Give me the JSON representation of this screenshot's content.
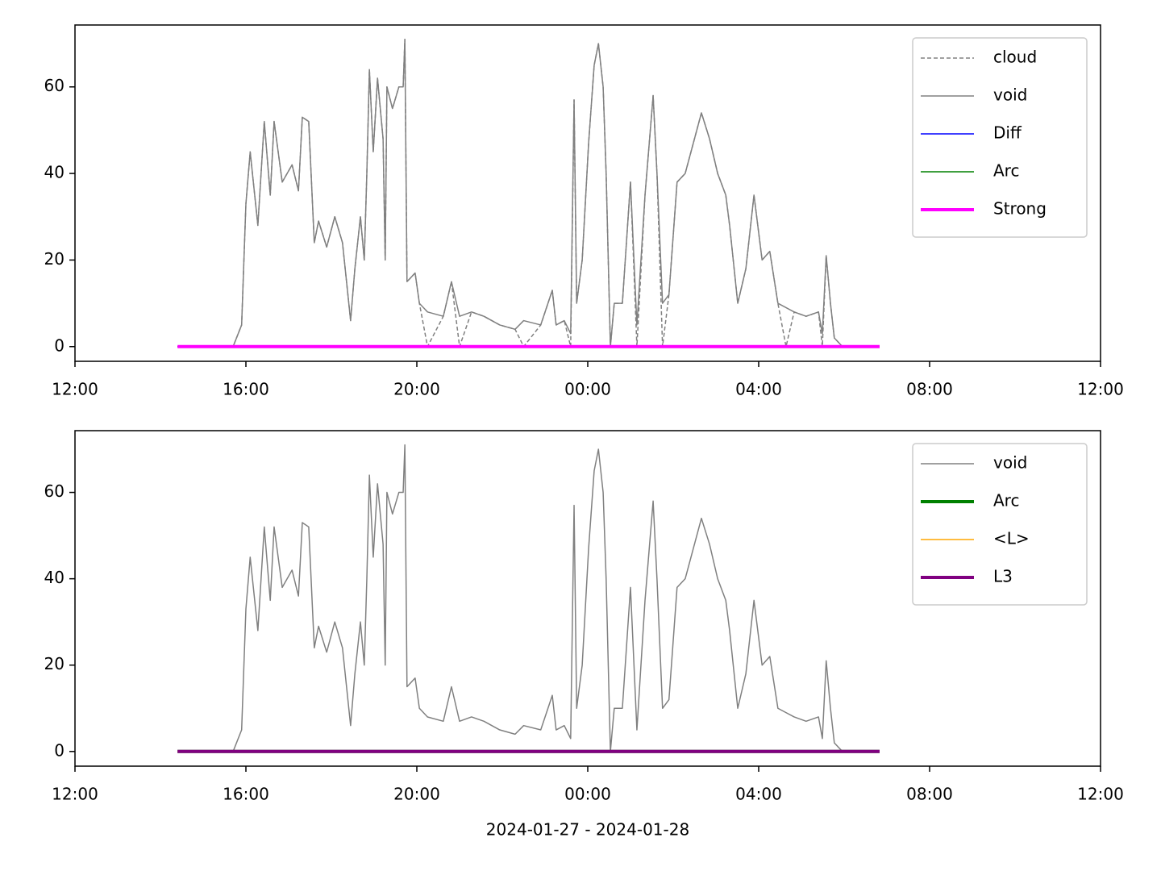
{
  "chart_data": [
    {
      "type": "line",
      "legend": "upper right",
      "ylim": [
        -3.4,
        74.3
      ],
      "yticks": [
        0,
        20,
        40,
        60
      ],
      "xlim": [
        0,
        24
      ],
      "xticks": [
        {
          "value": 0,
          "label": "12:00"
        },
        {
          "value": 4,
          "label": "16:00"
        },
        {
          "value": 8,
          "label": "20:00"
        },
        {
          "value": 12,
          "label": "00:00"
        },
        {
          "value": 16,
          "label": "04:00"
        },
        {
          "value": 20,
          "label": "08:00"
        },
        {
          "value": 24,
          "label": "12:00"
        }
      ],
      "x": [
        2.4,
        3.7,
        3.9,
        4.0,
        4.1,
        4.28,
        4.43,
        4.57,
        4.66,
        4.85,
        5.08,
        5.23,
        5.32,
        5.47,
        5.6,
        5.7,
        5.89,
        6.08,
        6.26,
        6.45,
        6.55,
        6.68,
        6.77,
        6.83,
        6.89,
        6.98,
        7.08,
        7.21,
        7.26,
        7.3,
        7.43,
        7.58,
        7.68,
        7.72,
        7.77,
        7.96,
        8.06,
        8.25,
        8.62,
        8.81,
        9.0,
        9.28,
        9.57,
        9.94,
        10.3,
        10.5,
        10.9,
        11.17,
        11.26,
        11.45,
        11.6,
        11.68,
        11.74,
        11.87,
        12.02,
        12.15,
        12.25,
        12.36,
        12.43,
        12.53,
        12.62,
        12.81,
        13.0,
        13.15,
        13.34,
        13.53,
        13.62,
        13.75,
        13.9,
        14.09,
        14.28,
        14.47,
        14.66,
        14.85,
        15.04,
        15.23,
        15.32,
        15.51,
        15.7,
        15.89,
        16.08,
        16.26,
        16.45,
        16.64,
        16.83,
        17.11,
        17.4,
        17.49,
        17.58,
        17.68,
        17.77,
        17.96,
        18.83
      ],
      "series": [
        {
          "name": "cloud",
          "color": "#808080",
          "width": 1.5,
          "dash": true,
          "values": [
            0,
            0,
            5,
            33,
            45,
            28,
            52,
            35,
            52,
            38,
            42,
            36,
            53,
            52,
            24,
            29,
            23,
            30,
            24,
            6,
            18,
            30,
            20,
            40,
            64,
            45,
            62,
            48,
            20,
            60,
            55,
            60,
            60,
            71,
            15,
            17,
            10,
            0,
            7,
            15,
            0,
            8,
            7,
            5,
            4,
            0,
            5,
            13,
            5,
            6,
            0,
            57,
            10,
            20,
            47,
            65,
            70,
            60,
            40,
            0,
            10,
            10,
            38,
            0,
            35,
            58,
            40,
            0,
            12,
            38,
            40,
            47,
            54,
            48,
            40,
            35,
            28,
            10,
            18,
            35,
            20,
            22,
            10,
            0,
            8,
            7,
            8,
            0,
            21,
            10,
            2,
            0,
            0
          ]
        },
        {
          "name": "void",
          "color": "#808080",
          "width": 1.5,
          "values": [
            0,
            0,
            5,
            33,
            45,
            28,
            52,
            35,
            52,
            38,
            42,
            36,
            53,
            52,
            24,
            29,
            23,
            30,
            24,
            6,
            18,
            30,
            20,
            40,
            64,
            45,
            62,
            48,
            20,
            60,
            55,
            60,
            60,
            71,
            15,
            17,
            10,
            8,
            7,
            15,
            7,
            8,
            7,
            5,
            4,
            6,
            5,
            13,
            5,
            6,
            3,
            57,
            10,
            20,
            47,
            65,
            70,
            60,
            40,
            0,
            10,
            10,
            38,
            5,
            35,
            58,
            40,
            10,
            12,
            38,
            40,
            47,
            54,
            48,
            40,
            35,
            28,
            10,
            18,
            35,
            20,
            22,
            10,
            9,
            8,
            7,
            8,
            3,
            21,
            10,
            2,
            0,
            0
          ]
        },
        {
          "name": "Diff",
          "color": "#0000ff",
          "width": 1.5,
          "x": [
            2.4,
            18.83
          ],
          "values": [
            0,
            0
          ]
        },
        {
          "name": "Arc",
          "color": "#008000",
          "width": 1.5,
          "x": [
            2.4,
            18.83
          ],
          "values": [
            0,
            0
          ]
        },
        {
          "name": "Strong",
          "color": "#ff00ff",
          "width": 4,
          "x": [
            2.4,
            18.83
          ],
          "values": [
            0,
            0
          ]
        }
      ]
    },
    {
      "type": "line",
      "legend": "upper right",
      "ylim": [
        -3.4,
        74.3
      ],
      "yticks": [
        0,
        20,
        40,
        60
      ],
      "xlim": [
        0,
        24
      ],
      "xlabel": "2024-01-27 - 2024-01-28",
      "xticks": [
        {
          "value": 0,
          "label": "12:00"
        },
        {
          "value": 4,
          "label": "16:00"
        },
        {
          "value": 8,
          "label": "20:00"
        },
        {
          "value": 12,
          "label": "00:00"
        },
        {
          "value": 16,
          "label": "04:00"
        },
        {
          "value": 20,
          "label": "08:00"
        },
        {
          "value": 24,
          "label": "12:00"
        }
      ],
      "x": [
        2.4,
        3.7,
        3.9,
        4.0,
        4.1,
        4.28,
        4.43,
        4.57,
        4.66,
        4.85,
        5.08,
        5.23,
        5.32,
        5.47,
        5.6,
        5.7,
        5.89,
        6.08,
        6.26,
        6.45,
        6.55,
        6.68,
        6.77,
        6.83,
        6.89,
        6.98,
        7.08,
        7.21,
        7.26,
        7.3,
        7.43,
        7.58,
        7.68,
        7.72,
        7.77,
        7.96,
        8.06,
        8.25,
        8.62,
        8.81,
        9.0,
        9.28,
        9.57,
        9.94,
        10.3,
        10.5,
        10.9,
        11.17,
        11.26,
        11.45,
        11.6,
        11.68,
        11.74,
        11.87,
        12.02,
        12.15,
        12.25,
        12.36,
        12.43,
        12.53,
        12.62,
        12.81,
        13.0,
        13.15,
        13.34,
        13.53,
        13.62,
        13.75,
        13.9,
        14.09,
        14.28,
        14.47,
        14.66,
        14.85,
        15.04,
        15.23,
        15.32,
        15.51,
        15.7,
        15.89,
        16.08,
        16.26,
        16.45,
        16.64,
        16.83,
        17.11,
        17.4,
        17.49,
        17.58,
        17.68,
        17.77,
        17.96,
        18.83
      ],
      "series": [
        {
          "name": "void",
          "color": "#808080",
          "width": 1.5,
          "values": [
            0,
            0,
            5,
            33,
            45,
            28,
            52,
            35,
            52,
            38,
            42,
            36,
            53,
            52,
            24,
            29,
            23,
            30,
            24,
            6,
            18,
            30,
            20,
            40,
            64,
            45,
            62,
            48,
            20,
            60,
            55,
            60,
            60,
            71,
            15,
            17,
            10,
            8,
            7,
            15,
            7,
            8,
            7,
            5,
            4,
            6,
            5,
            13,
            5,
            6,
            3,
            57,
            10,
            20,
            47,
            65,
            70,
            60,
            40,
            0,
            10,
            10,
            38,
            5,
            35,
            58,
            40,
            10,
            12,
            38,
            40,
            47,
            54,
            48,
            40,
            35,
            28,
            10,
            18,
            35,
            20,
            22,
            10,
            9,
            8,
            7,
            8,
            3,
            21,
            10,
            2,
            0,
            0
          ]
        },
        {
          "name": "Arc",
          "color": "#008000",
          "width": 4,
          "x": [
            2.4,
            18.83
          ],
          "values": [
            0,
            0
          ]
        },
        {
          "name": "<L>",
          "color": "#ffa500",
          "width": 1.5,
          "x": [
            2.4,
            18.83
          ],
          "values": [
            0,
            0
          ]
        },
        {
          "name": "L3",
          "color": "#800080",
          "width": 4,
          "x": [
            2.4,
            18.83
          ],
          "values": [
            0,
            0
          ]
        }
      ]
    }
  ]
}
